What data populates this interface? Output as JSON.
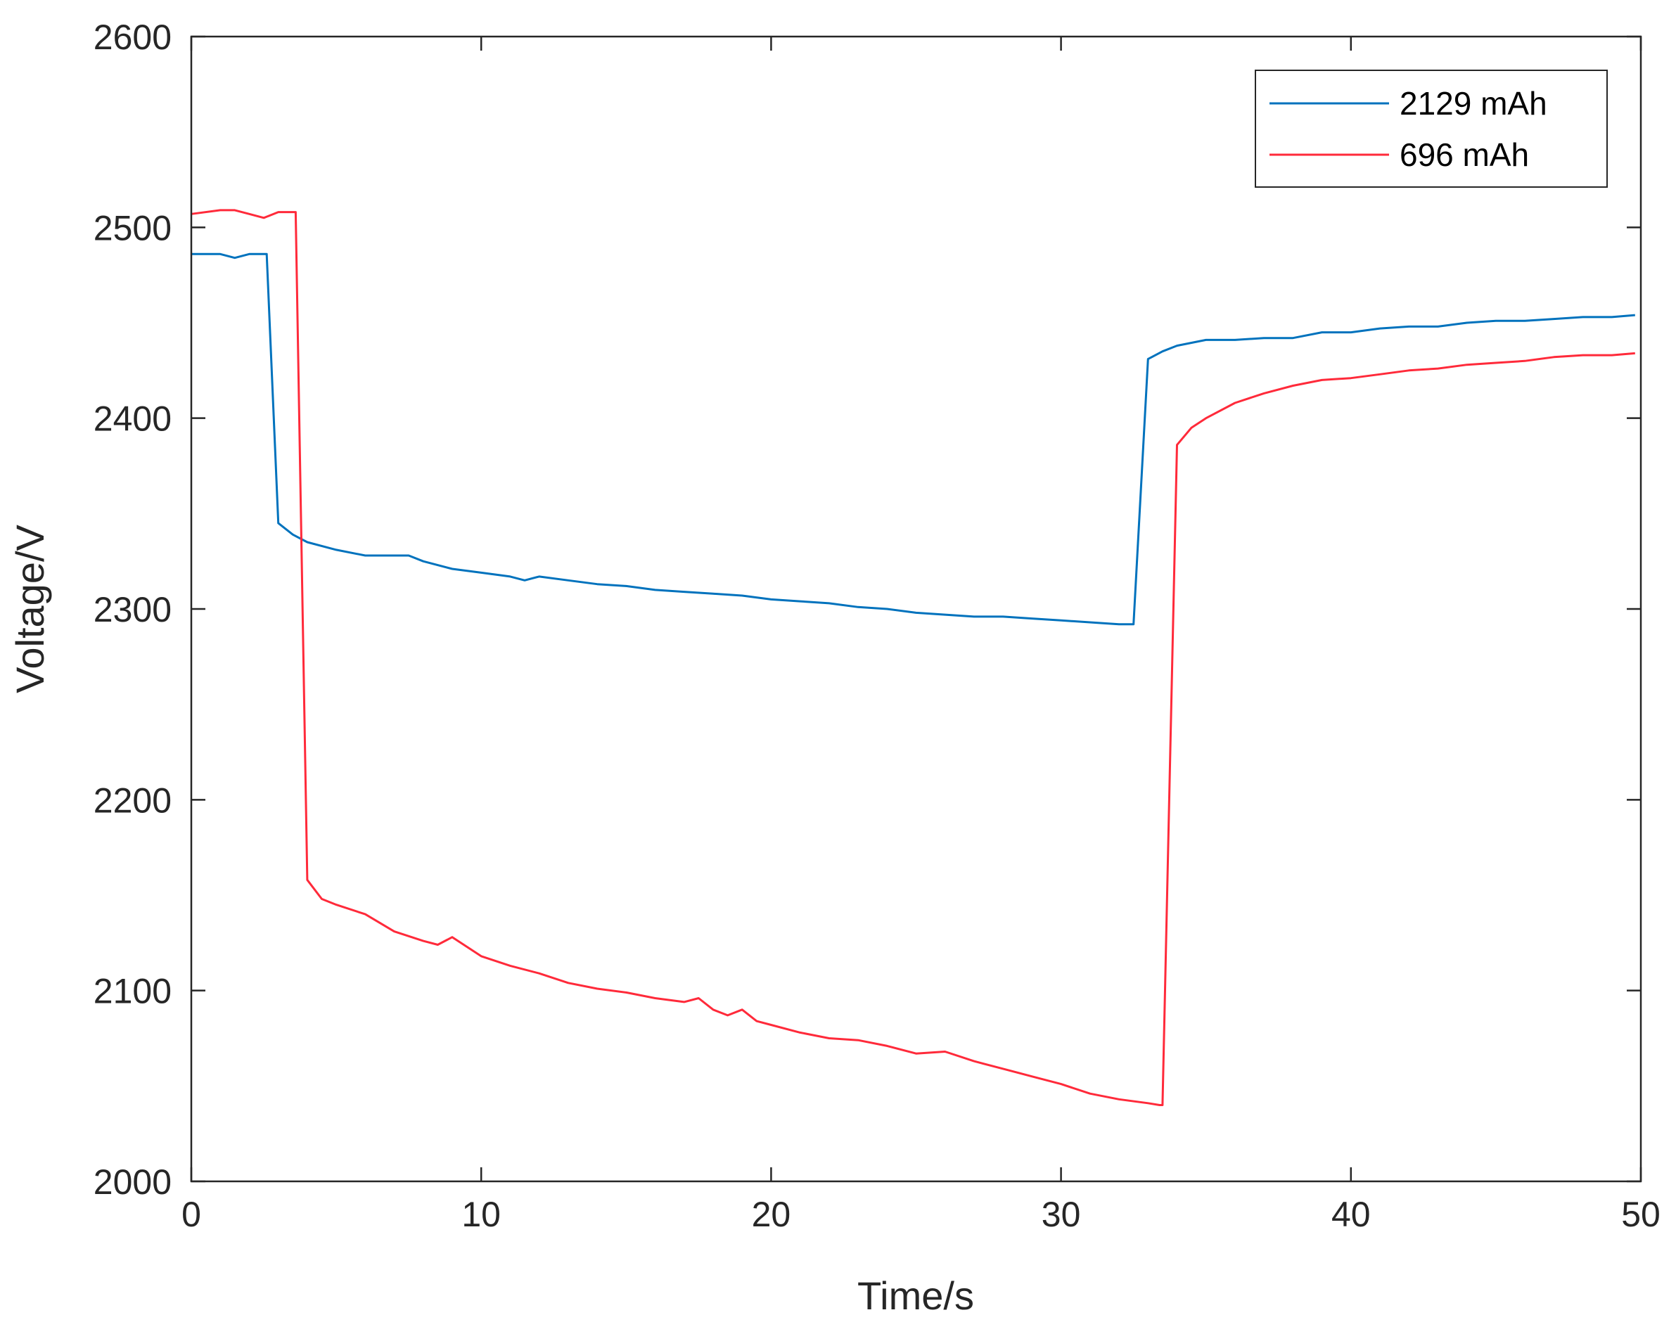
{
  "chart_data": {
    "type": "line",
    "title": "",
    "xlabel": "Time/s",
    "ylabel": "Voltage/V",
    "xlim": [
      0,
      50
    ],
    "ylim": [
      2000,
      2600
    ],
    "xticks": [
      0,
      10,
      20,
      30,
      40,
      50
    ],
    "yticks": [
      2000,
      2100,
      2200,
      2300,
      2400,
      2500,
      2600
    ],
    "grid": false,
    "legend_position": "top-right",
    "series": [
      {
        "name": "2129 mAh",
        "color": "#0072BD",
        "x": [
          0,
          1,
          1.5,
          2,
          2.5,
          2.6,
          3,
          3.5,
          4,
          5,
          6,
          7,
          7.5,
          8,
          9,
          10,
          11,
          11.5,
          12,
          13,
          14,
          15,
          16,
          17,
          18,
          19,
          20,
          21,
          22,
          23,
          24,
          25,
          26,
          27,
          28,
          29,
          30,
          31,
          32,
          32.5,
          33,
          33.5,
          34,
          35,
          36,
          37,
          38,
          39,
          40,
          41,
          42,
          43,
          44,
          45,
          46,
          47,
          48,
          49,
          49.8
        ],
        "y": [
          2486,
          2486,
          2484,
          2486,
          2486,
          2486,
          2345,
          2339,
          2335,
          2331,
          2328,
          2328,
          2328,
          2325,
          2321,
          2319,
          2317,
          2315,
          2317,
          2315,
          2313,
          2312,
          2310,
          2309,
          2308,
          2307,
          2305,
          2304,
          2303,
          2301,
          2300,
          2298,
          2297,
          2296,
          2296,
          2295,
          2294,
          2293,
          2292,
          2292,
          2431,
          2435,
          2438,
          2441,
          2441,
          2442,
          2442,
          2445,
          2445,
          2447,
          2448,
          2448,
          2450,
          2451,
          2451,
          2452,
          2453,
          2453,
          2454
        ]
      },
      {
        "name": "696 mAh",
        "color": "#FF2A3A",
        "x": [
          0,
          1,
          1.5,
          2,
          2.5,
          3,
          3.5,
          3.6,
          4,
          4.5,
          5,
          6,
          7,
          8,
          8.5,
          9,
          9.5,
          10,
          11,
          12,
          13,
          14,
          15,
          16,
          17,
          17.5,
          18,
          18.5,
          19,
          19.5,
          20,
          21,
          22,
          23,
          24,
          25,
          26,
          27,
          28,
          29,
          30,
          31,
          32,
          33,
          33.4,
          33.5,
          34,
          34.5,
          35,
          36,
          37,
          38,
          39,
          40,
          41,
          42,
          43,
          44,
          45,
          46,
          47,
          48,
          49,
          49.8
        ],
        "y": [
          2507,
          2509,
          2509,
          2507,
          2505,
          2508,
          2508,
          2508,
          2158,
          2148,
          2145,
          2140,
          2131,
          2126,
          2124,
          2128,
          2123,
          2118,
          2113,
          2109,
          2104,
          2101,
          2099,
          2096,
          2094,
          2096,
          2090,
          2087,
          2090,
          2084,
          2082,
          2078,
          2075,
          2074,
          2071,
          2067,
          2068,
          2063,
          2059,
          2055,
          2051,
          2046,
          2043,
          2041,
          2040,
          2040,
          2386,
          2395,
          2400,
          2408,
          2413,
          2417,
          2420,
          2421,
          2423,
          2425,
          2426,
          2428,
          2429,
          2430,
          2432,
          2433,
          2433,
          2434
        ]
      }
    ]
  }
}
